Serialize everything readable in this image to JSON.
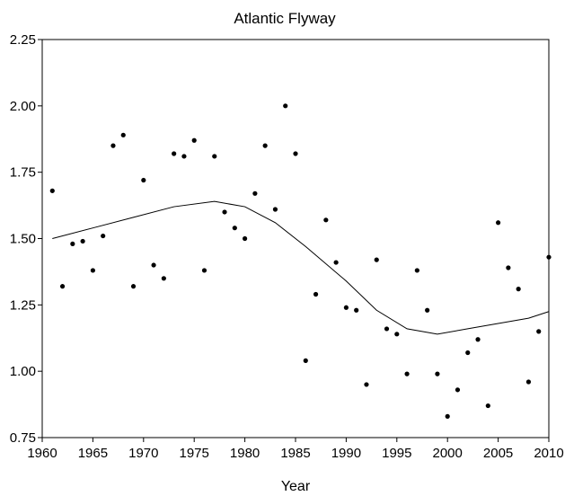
{
  "chart_data": {
    "type": "scatter",
    "title": "Atlantic Flyway",
    "xlabel": "Year",
    "ylabel": "",
    "xlim": [
      1960,
      2010
    ],
    "ylim": [
      0.75,
      2.25
    ],
    "x_ticks": [
      1960,
      1965,
      1970,
      1975,
      1980,
      1985,
      1990,
      1995,
      2000,
      2005,
      2010
    ],
    "y_ticks": [
      "0.75",
      "1.00",
      "1.25",
      "1.50",
      "1.75",
      "2.00",
      "2.25"
    ],
    "grid": false,
    "legend": "none",
    "points": [
      {
        "x": 1961,
        "y": 1.68
      },
      {
        "x": 1962,
        "y": 1.32
      },
      {
        "x": 1963,
        "y": 1.48
      },
      {
        "x": 1964,
        "y": 1.49
      },
      {
        "x": 1965,
        "y": 1.38
      },
      {
        "x": 1966,
        "y": 1.51
      },
      {
        "x": 1967,
        "y": 1.85
      },
      {
        "x": 1968,
        "y": 1.89
      },
      {
        "x": 1969,
        "y": 1.32
      },
      {
        "x": 1970,
        "y": 1.72
      },
      {
        "x": 1971,
        "y": 1.4
      },
      {
        "x": 1972,
        "y": 1.35
      },
      {
        "x": 1973,
        "y": 1.82
      },
      {
        "x": 1974,
        "y": 1.81
      },
      {
        "x": 1975,
        "y": 1.87
      },
      {
        "x": 1976,
        "y": 1.38
      },
      {
        "x": 1977,
        "y": 1.81
      },
      {
        "x": 1978,
        "y": 1.6
      },
      {
        "x": 1979,
        "y": 1.54
      },
      {
        "x": 1980,
        "y": 1.5
      },
      {
        "x": 1981,
        "y": 1.67
      },
      {
        "x": 1982,
        "y": 1.85
      },
      {
        "x": 1983,
        "y": 1.61
      },
      {
        "x": 1984,
        "y": 2.0
      },
      {
        "x": 1985,
        "y": 1.82
      },
      {
        "x": 1986,
        "y": 1.04
      },
      {
        "x": 1987,
        "y": 1.29
      },
      {
        "x": 1988,
        "y": 1.57
      },
      {
        "x": 1989,
        "y": 1.41
      },
      {
        "x": 1990,
        "y": 1.24
      },
      {
        "x": 1991,
        "y": 1.23
      },
      {
        "x": 1992,
        "y": 0.95
      },
      {
        "x": 1993,
        "y": 1.42
      },
      {
        "x": 1994,
        "y": 1.16
      },
      {
        "x": 1995,
        "y": 1.14
      },
      {
        "x": 1996,
        "y": 0.99
      },
      {
        "x": 1997,
        "y": 1.38
      },
      {
        "x": 1998,
        "y": 1.23
      },
      {
        "x": 1999,
        "y": 0.99
      },
      {
        "x": 2000,
        "y": 0.83
      },
      {
        "x": 2001,
        "y": 0.93
      },
      {
        "x": 2002,
        "y": 1.07
      },
      {
        "x": 2003,
        "y": 1.12
      },
      {
        "x": 2004,
        "y": 0.87
      },
      {
        "x": 2005,
        "y": 1.56
      },
      {
        "x": 2006,
        "y": 1.39
      },
      {
        "x": 2007,
        "y": 1.31
      },
      {
        "x": 2008,
        "y": 0.96
      },
      {
        "x": 2009,
        "y": 1.15
      },
      {
        "x": 2010,
        "y": 1.43
      }
    ],
    "fit_line": [
      {
        "x": 1961,
        "y": 1.5
      },
      {
        "x": 1965,
        "y": 1.54
      },
      {
        "x": 1969,
        "y": 1.58
      },
      {
        "x": 1973,
        "y": 1.62
      },
      {
        "x": 1977,
        "y": 1.64
      },
      {
        "x": 1980,
        "y": 1.62
      },
      {
        "x": 1983,
        "y": 1.56
      },
      {
        "x": 1986,
        "y": 1.47
      },
      {
        "x": 1990,
        "y": 1.34
      },
      {
        "x": 1993,
        "y": 1.23
      },
      {
        "x": 1996,
        "y": 1.16
      },
      {
        "x": 1999,
        "y": 1.14
      },
      {
        "x": 2002,
        "y": 1.16
      },
      {
        "x": 2005,
        "y": 1.18
      },
      {
        "x": 2008,
        "y": 1.2
      },
      {
        "x": 2010,
        "y": 1.225
      }
    ]
  }
}
